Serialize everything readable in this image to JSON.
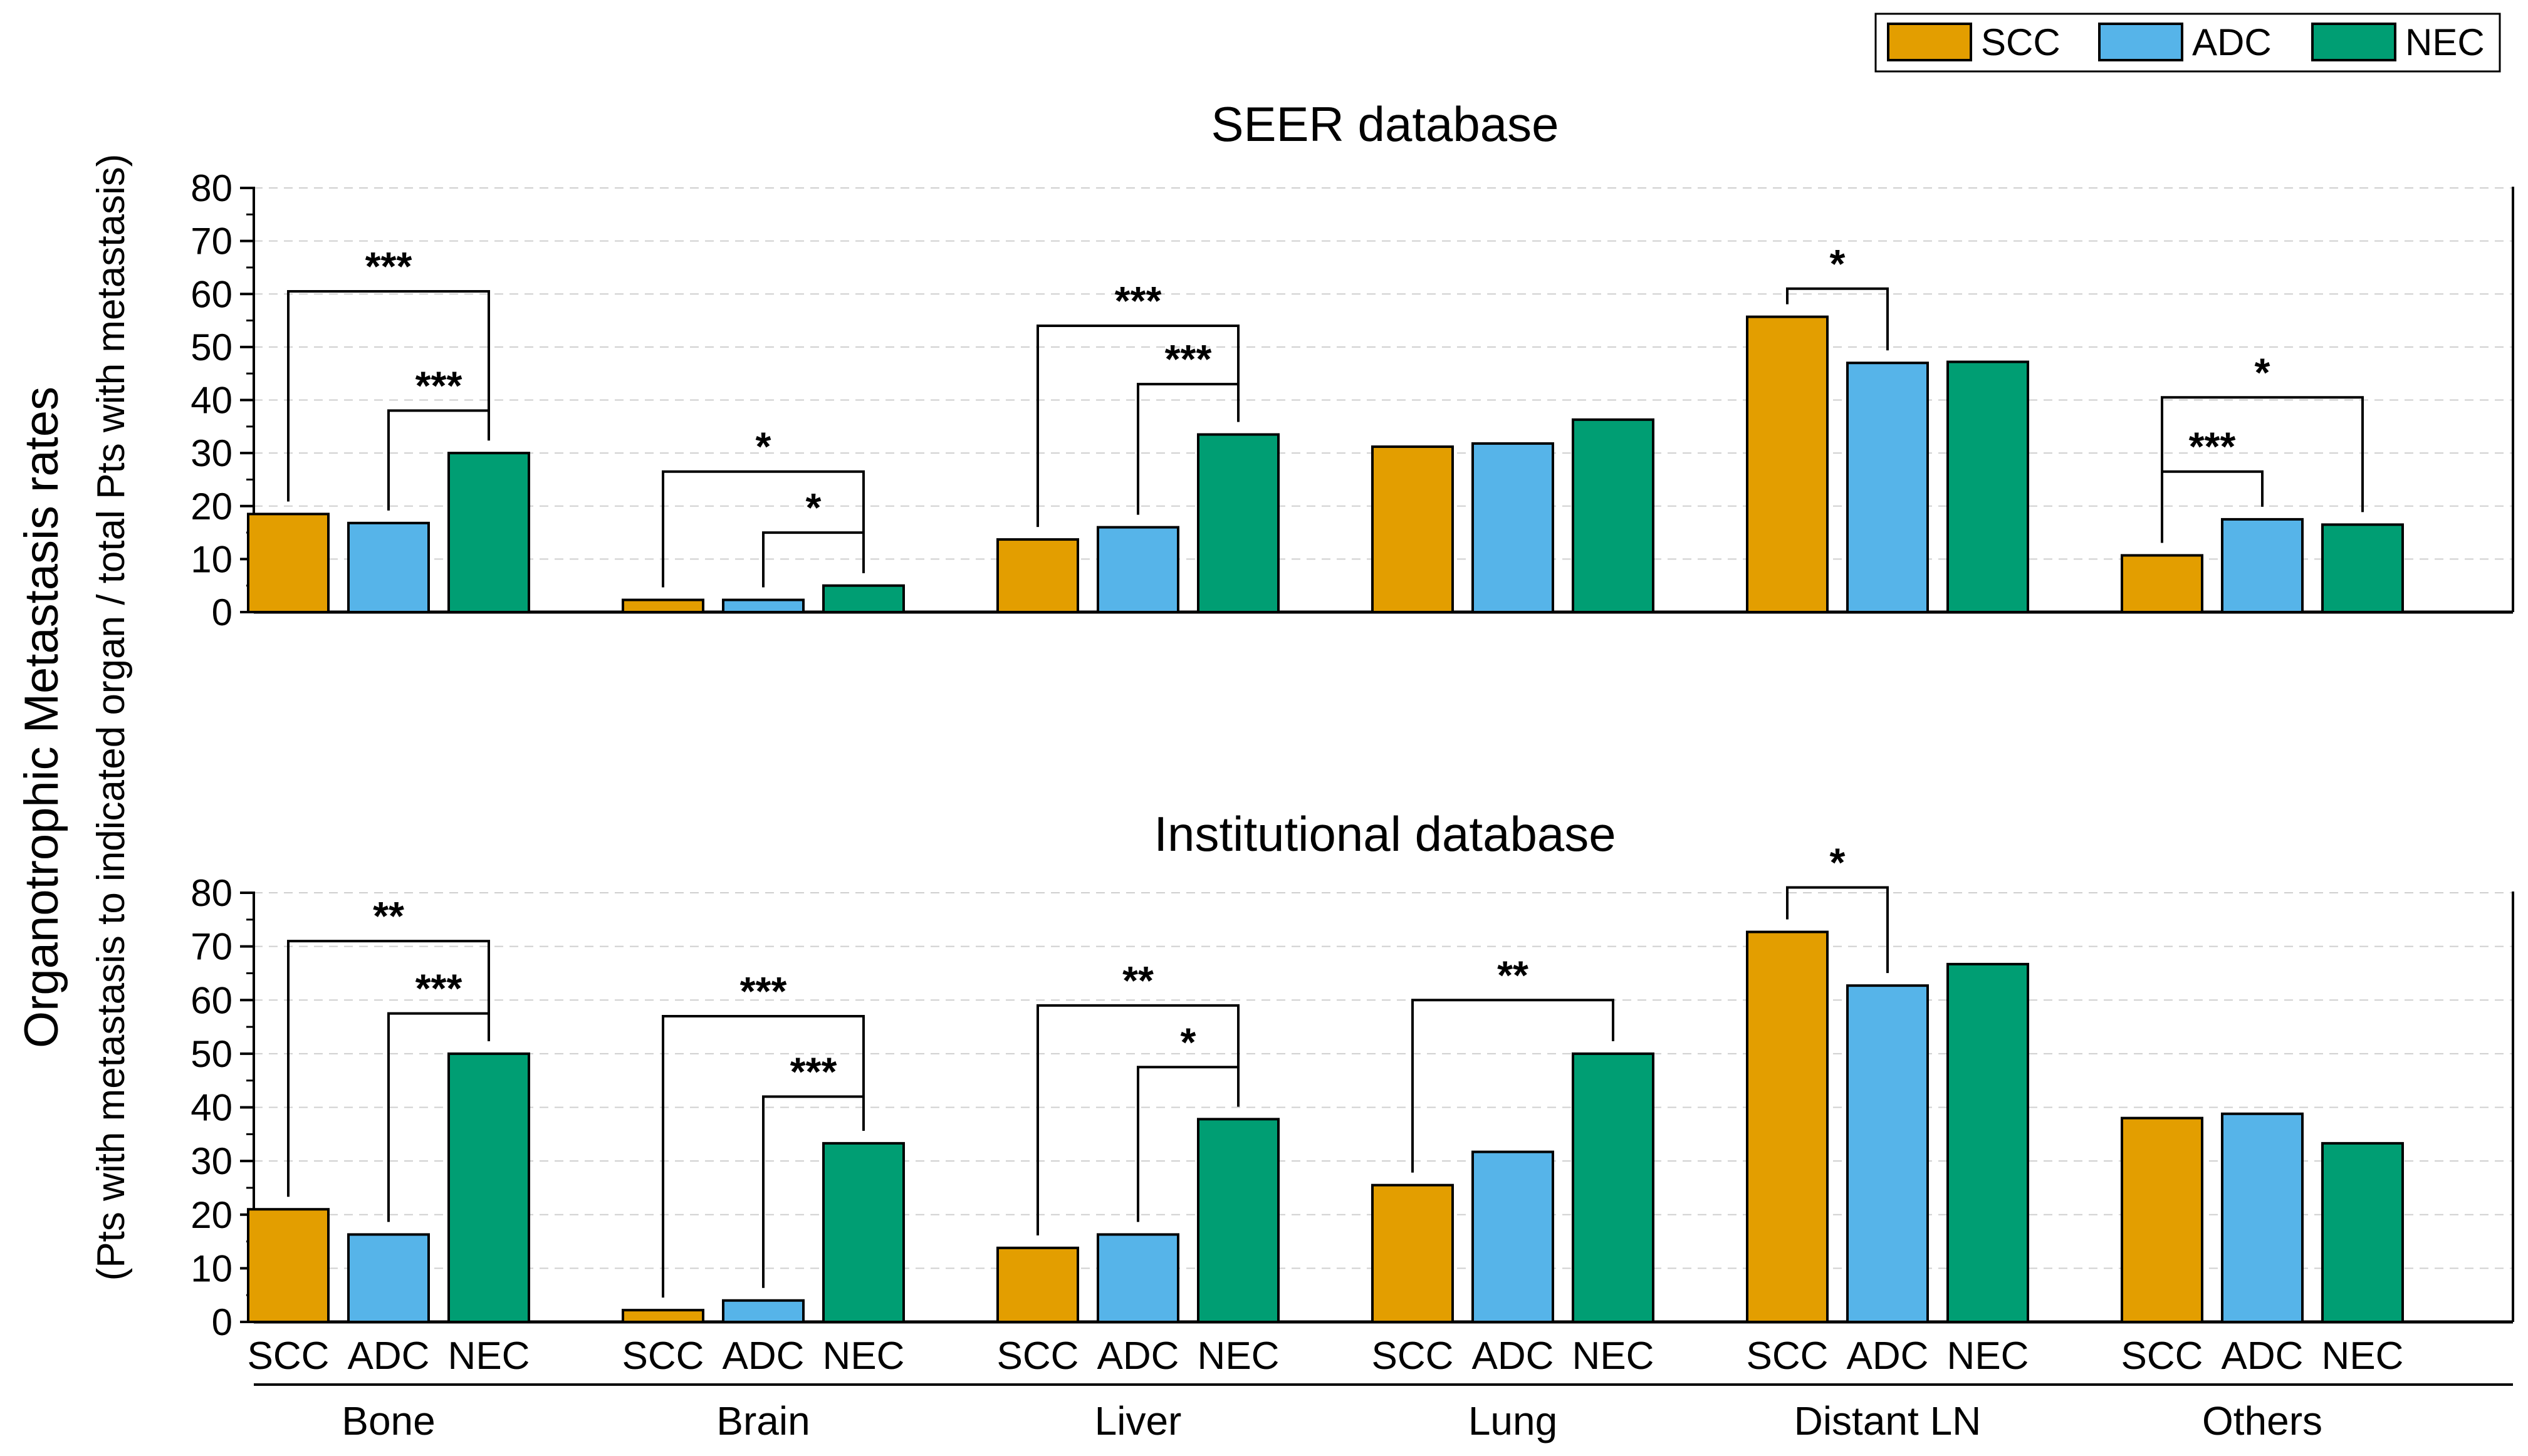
{
  "legend": [
    {
      "name": "SCC",
      "color": "#E39E00"
    },
    {
      "name": "ADC",
      "color": "#56B4E9"
    },
    {
      "name": "NEC",
      "color": "#009E73"
    }
  ],
  "y_axis_label": "Organotrophic Metastasis rates",
  "y_axis_sublabel": "(Pts with metastasis to indicated organ / total Pts with metastasis)",
  "chart_data": [
    {
      "type": "bar",
      "title": "SEER database",
      "categories": [
        "Bone",
        "Brain",
        "Liver",
        "Lung",
        "Distant LN",
        "Others"
      ],
      "series": [
        {
          "name": "SCC",
          "values": [
            18.5,
            2.3,
            13.7,
            31.2,
            55.7,
            10.7
          ]
        },
        {
          "name": "ADC",
          "values": [
            16.8,
            2.3,
            16.0,
            31.8,
            47.0,
            17.5
          ]
        },
        {
          "name": "NEC",
          "values": [
            30.0,
            5.0,
            33.5,
            36.3,
            47.2,
            16.5
          ]
        }
      ],
      "ylim": [
        0,
        80
      ],
      "yticks": [
        0,
        10,
        20,
        30,
        40,
        50,
        60,
        70,
        80
      ],
      "ylabel": "Organotrophic Metastasis rates",
      "grid": "dashed horizontal",
      "significance": [
        {
          "group": 0,
          "from": 0,
          "to": 2,
          "label": "***",
          "line": 60.5
        },
        {
          "group": 0,
          "from": 1,
          "to": 2,
          "label": "***",
          "line": 38
        },
        {
          "group": 1,
          "from": 0,
          "to": 2,
          "label": "*",
          "line": 26.5
        },
        {
          "group": 1,
          "from": 1,
          "to": 2,
          "label": "*",
          "line": 15
        },
        {
          "group": 2,
          "from": 0,
          "to": 2,
          "label": "***",
          "line": 54
        },
        {
          "group": 2,
          "from": 1,
          "to": 2,
          "label": "***",
          "line": 43
        },
        {
          "group": 4,
          "from": 0,
          "to": 1,
          "label": "*",
          "line": 61
        },
        {
          "group": 5,
          "from": 0,
          "to": 2,
          "label": "*",
          "line": 40.5
        },
        {
          "group": 5,
          "from": 0,
          "to": 1,
          "label": "***",
          "line": 26.5
        }
      ]
    },
    {
      "type": "bar",
      "title": "Institutional database",
      "categories": [
        "Bone",
        "Brain",
        "Liver",
        "Lung",
        "Distant LN",
        "Others"
      ],
      "series_labels": [
        "SCC",
        "ADC",
        "NEC"
      ],
      "series": [
        {
          "name": "SCC",
          "values": [
            21.0,
            2.2,
            13.8,
            25.5,
            72.7,
            38.0
          ]
        },
        {
          "name": "ADC",
          "values": [
            16.3,
            4.0,
            16.3,
            31.7,
            62.7,
            38.8
          ]
        },
        {
          "name": "NEC",
          "values": [
            50.0,
            33.3,
            37.8,
            50.0,
            66.7,
            33.3
          ]
        }
      ],
      "ylim": [
        0,
        80
      ],
      "yticks": [
        0,
        10,
        20,
        30,
        40,
        50,
        60,
        70,
        80
      ],
      "grid": "dashed horizontal",
      "significance": [
        {
          "group": 0,
          "from": 0,
          "to": 2,
          "label": "**",
          "line": 71
        },
        {
          "group": 0,
          "from": 1,
          "to": 2,
          "label": "***",
          "line": 57.5
        },
        {
          "group": 1,
          "from": 0,
          "to": 2,
          "label": "***",
          "line": 57
        },
        {
          "group": 1,
          "from": 1,
          "to": 2,
          "label": "***",
          "line": 42
        },
        {
          "group": 2,
          "from": 0,
          "to": 2,
          "label": "**",
          "line": 59
        },
        {
          "group": 2,
          "from": 1,
          "to": 2,
          "label": "*",
          "line": 47.5
        },
        {
          "group": 3,
          "from": 0,
          "to": 2,
          "label": "**",
          "line": 60
        },
        {
          "group": 4,
          "from": 0,
          "to": 1,
          "label": "*",
          "line": 81
        }
      ]
    }
  ]
}
